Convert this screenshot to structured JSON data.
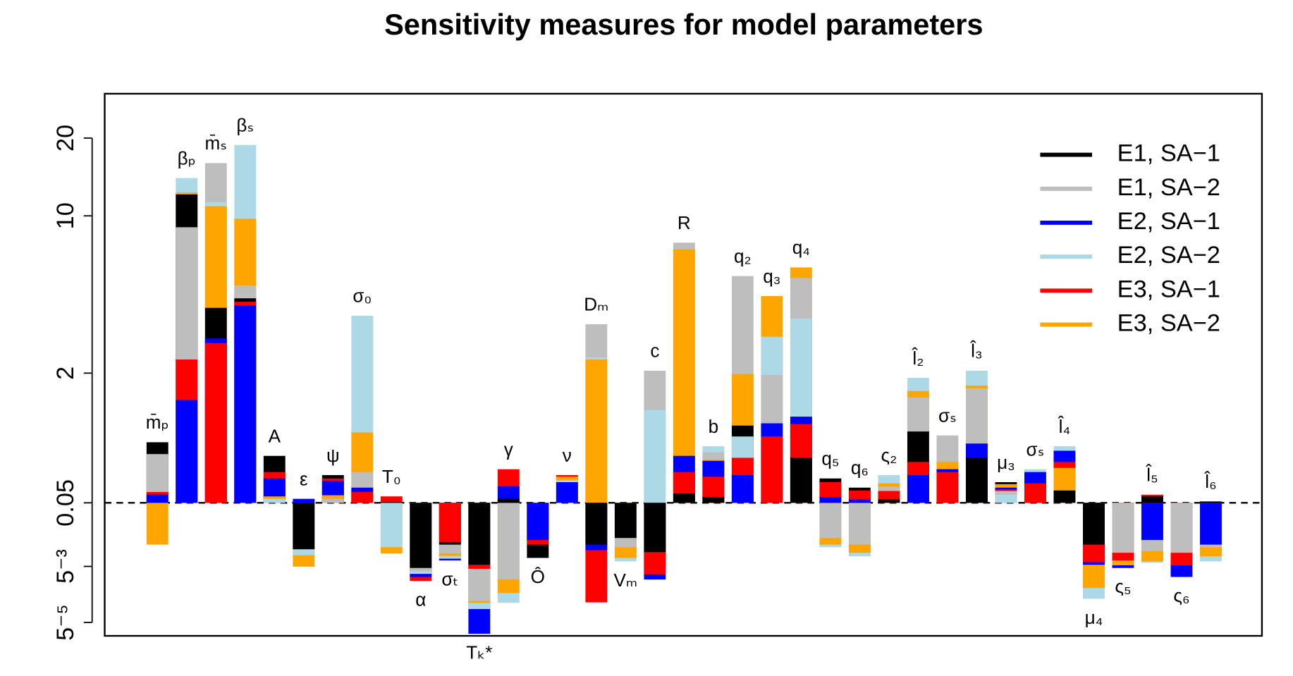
{
  "chart_data": {
    "type": "overlaid-bar",
    "title": "Sensitivity measures for model parameters",
    "categories": [
      "m̄ₚ",
      "βₚ",
      "m̄ₛ",
      "βₛ",
      "A",
      "ε",
      "ψ",
      "σ₀",
      "T₀",
      "α",
      "σₜ",
      "Tₖ*",
      "γ",
      "Ô",
      "ν",
      "Dₘ",
      "Vₘ",
      "c",
      "R",
      "b",
      "q₂",
      "q₃",
      "q₄",
      "q₅",
      "q₆",
      "ς₂",
      "l̂₂",
      "σₛ",
      "l̂₃",
      "μ₃",
      "σₛ",
      "l̂₄",
      "μ₄",
      "ς₅",
      "l̂₅",
      "ς₆",
      "l̂₆"
    ],
    "baseline": 0.05,
    "ylim": [
      1.6e-05,
      30
    ],
    "yticks": [
      20,
      10,
      2,
      0.05,
      {
        "value": 0.005,
        "label": "5⁻³"
      },
      {
        "value": 5e-05,
        "label": "5⁻⁵"
      }
    ],
    "legend": "top-right",
    "series": [
      {
        "name": "E1, SA−1",
        "color": "#000000",
        "values": [
          0.28,
          12.1,
          3.9,
          4.3,
          0.19,
          0.0093,
          0.11,
          0.05,
          0.051,
          0.0044,
          0.011,
          0.0053,
          0.056,
          0.0068,
          0.05,
          0.011,
          0.014,
          0.0084,
          0.065,
          0.059,
          0.45,
          0.05,
          0.18,
          0.1,
          0.077,
          0.055,
          0.38,
          0.05,
          0.18,
          0.09,
          0.05,
          0.071,
          0.011,
          0.05,
          0.06,
          0.05,
          0.052
        ]
      },
      {
        "name": "E1, SA−2",
        "color": "#bebebe",
        "values": [
          0.2,
          8.9,
          16,
          4.9,
          0.05,
          0.05,
          0.056,
          0.12,
          0.05,
          0.0034,
          0.008,
          0.00029,
          0.0017,
          0.05,
          0.05,
          3.3,
          0.01,
          2.05,
          7.6,
          0.21,
          5.4,
          1.9,
          5.3,
          0.014,
          0.011,
          0.079,
          1.0,
          0.34,
          1.3,
          0.07,
          0.05,
          0.05,
          0.05,
          0.0082,
          0.0087,
          0.0082,
          0.01
        ]
      },
      {
        "name": "E2, SA−1",
        "color": "#0000ff",
        "values": [
          0.063,
          0.93,
          2.85,
          4.0,
          0.1,
          0.056,
          0.093,
          0.077,
          0.05,
          0.0021,
          0.0062,
          1.9e-05,
          0.08,
          0.013,
          0.09,
          0.009,
          0.05,
          0.0017,
          0.19,
          0.165,
          0.11,
          0.48,
          0.58,
          0.059,
          0.055,
          0.05,
          0.11,
          0.13,
          0.27,
          0.077,
          0.12,
          0.22,
          0.0053,
          0.0044,
          0.013,
          0.0021,
          0.011
        ]
      },
      {
        "name": "E2, SA−2",
        "color": "#add8e6",
        "values": [
          0.05,
          14,
          11.3,
          18.8,
          0.056,
          0.0075,
          0.05,
          3.6,
          0.01,
          0.0027,
          0.0066,
          0.00015,
          0.00025,
          0.05,
          0.095,
          2.35,
          0.006,
          0.7,
          0.05,
          0.25,
          0.33,
          2.9,
          3.5,
          0.01,
          0.0072,
          0.11,
          1.75,
          0.05,
          2.05,
          0.063,
          0.13,
          0.25,
          0.00035,
          0.05,
          0.0057,
          0.05,
          0.006
        ]
      },
      {
        "name": "E3, SA−1",
        "color": "#ff0000",
        "values": [
          0.068,
          2.3,
          2.72,
          4.15,
          0.12,
          0.05,
          0.1,
          0.068,
          0.06,
          0.0015,
          0.012,
          0.0041,
          0.13,
          0.011,
          0.11,
          0.00026,
          0.05,
          0.0026,
          0.12,
          0.105,
          0.18,
          0.33,
          0.47,
          0.09,
          0.071,
          0.07,
          0.16,
          0.12,
          0.05,
          0.073,
          0.087,
          0.16,
          0.0058,
          0.0062,
          0.063,
          0.0052,
          0.05
        ]
      },
      {
        "name": "E3, SA−2",
        "color": "#ffa500",
        "values": [
          0.011,
          12.3,
          10.9,
          9.7,
          0.06,
          0.0049,
          0.062,
          0.37,
          0.008,
          0.05,
          0.0073,
          0.00025,
          0.00056,
          0.05,
          0.105,
          2.3,
          0.0068,
          0.05,
          7.1,
          0.17,
          1.95,
          4.4,
          5.9,
          0.011,
          0.0082,
          0.087,
          1.2,
          0.16,
          1.4,
          0.085,
          0.05,
          0.135,
          0.00085,
          0.0052,
          0.006,
          0.05,
          0.0072
        ]
      }
    ]
  }
}
